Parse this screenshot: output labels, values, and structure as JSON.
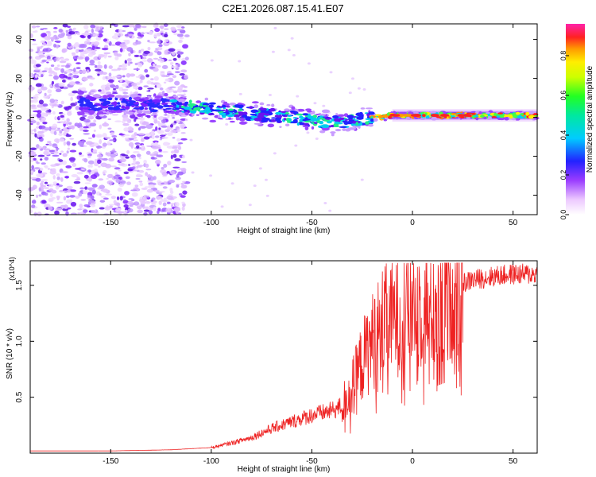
{
  "title": "C2E1.2026.087.15.41.E07",
  "colors": {
    "snr_line": "#ee2222",
    "background": "#ffffff"
  },
  "chart_data": [
    {
      "type": "heatmap",
      "xlabel": "Height of straight line (km)",
      "ylabel": "Frequency (Hz)",
      "xlim": [
        -190,
        62
      ],
      "ylim": [
        -50,
        48
      ],
      "x_ticks": [
        -150,
        -100,
        -50,
        0,
        50
      ],
      "y_ticks": [
        -40,
        -20,
        0,
        20,
        40
      ],
      "colorbar": {
        "label": "Normalized spectral amplitude",
        "range": [
          0,
          0.96
        ],
        "ticks": [
          "0.0",
          "0.2",
          "0.4",
          "0.6",
          "0.8"
        ],
        "colormap": "white-violet-blue-cyan-green-yellow-orange-red-magenta"
      },
      "ridge": [
        {
          "x": -160,
          "f": 7
        },
        {
          "x": -120,
          "f": 6
        },
        {
          "x": -100,
          "f": 4
        },
        {
          "x": -80,
          "f": 2
        },
        {
          "x": -60,
          "f": 0
        },
        {
          "x": -40,
          "f": -3
        },
        {
          "x": -25,
          "f": -1
        },
        {
          "x": -10,
          "f": 1
        },
        {
          "x": 10,
          "f": 1
        },
        {
          "x": 30,
          "f": 1
        },
        {
          "x": 60,
          "f": 1
        }
      ],
      "noise_region_x": [
        -190,
        -112
      ]
    },
    {
      "type": "line",
      "xlabel": "Height of straight line (km)",
      "ylabel": "SNR (10 * v/v)",
      "y_multiplier": "(x10^4)",
      "xlim": [
        -190,
        62
      ],
      "ylim": [
        0,
        1.72
      ],
      "x_ticks": [
        -150,
        -100,
        -50,
        0,
        50
      ],
      "y_ticks": [
        0.5,
        1.0,
        1.5
      ],
      "series": [
        {
          "name": "SNR",
          "envelope_x": [
            -190,
            -150,
            -120,
            -100,
            -90,
            -80,
            -70,
            -60,
            -50,
            -40,
            -35,
            -30,
            -25,
            -20,
            -15,
            -10,
            -5,
            0,
            5,
            10,
            15,
            20,
            25,
            30,
            40,
            50,
            62
          ],
          "envelope_y": [
            0.02,
            0.02,
            0.03,
            0.05,
            0.09,
            0.14,
            0.22,
            0.28,
            0.34,
            0.38,
            0.42,
            0.58,
            0.82,
            1.0,
            1.15,
            1.2,
            1.25,
            1.33,
            1.32,
            1.3,
            1.38,
            1.45,
            1.52,
            1.55,
            1.58,
            1.6,
            1.6
          ]
        }
      ]
    }
  ]
}
